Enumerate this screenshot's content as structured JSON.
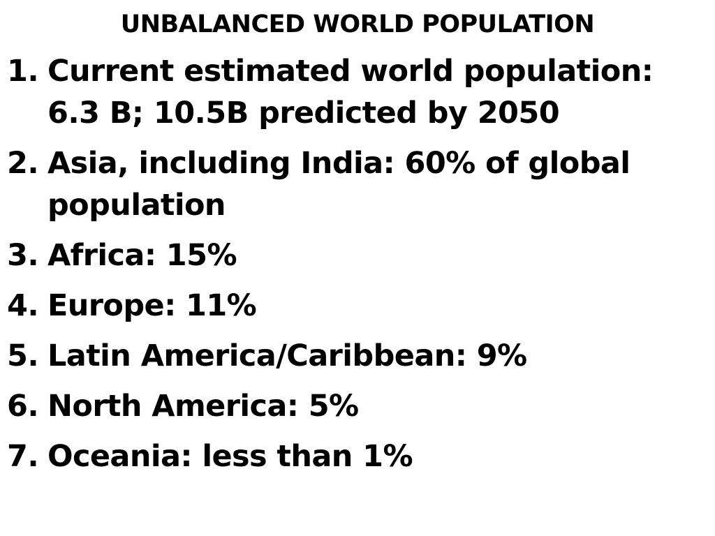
{
  "header": {
    "title": "UNBALANCED WORLD POPULATION"
  },
  "list": {
    "items": [
      {
        "number": "1.",
        "lines": [
          "Current estimated world population:",
          "6.3 B; 10.5B predicted by 2050"
        ]
      },
      {
        "number": "2.",
        "lines": [
          "Asia, including India: 60% of global",
          "population"
        ]
      },
      {
        "number": "3.",
        "lines": [
          "Africa: 15%"
        ]
      },
      {
        "number": "4.",
        "lines": [
          "Europe: 11%"
        ]
      },
      {
        "number": "5.",
        "lines": [
          "Latin America/Caribbean: 9%"
        ]
      },
      {
        "number": "6.",
        "lines": [
          "North America: 5%"
        ]
      },
      {
        "number": "7.",
        "lines": [
          "Oceania: less than 1%"
        ]
      }
    ]
  }
}
